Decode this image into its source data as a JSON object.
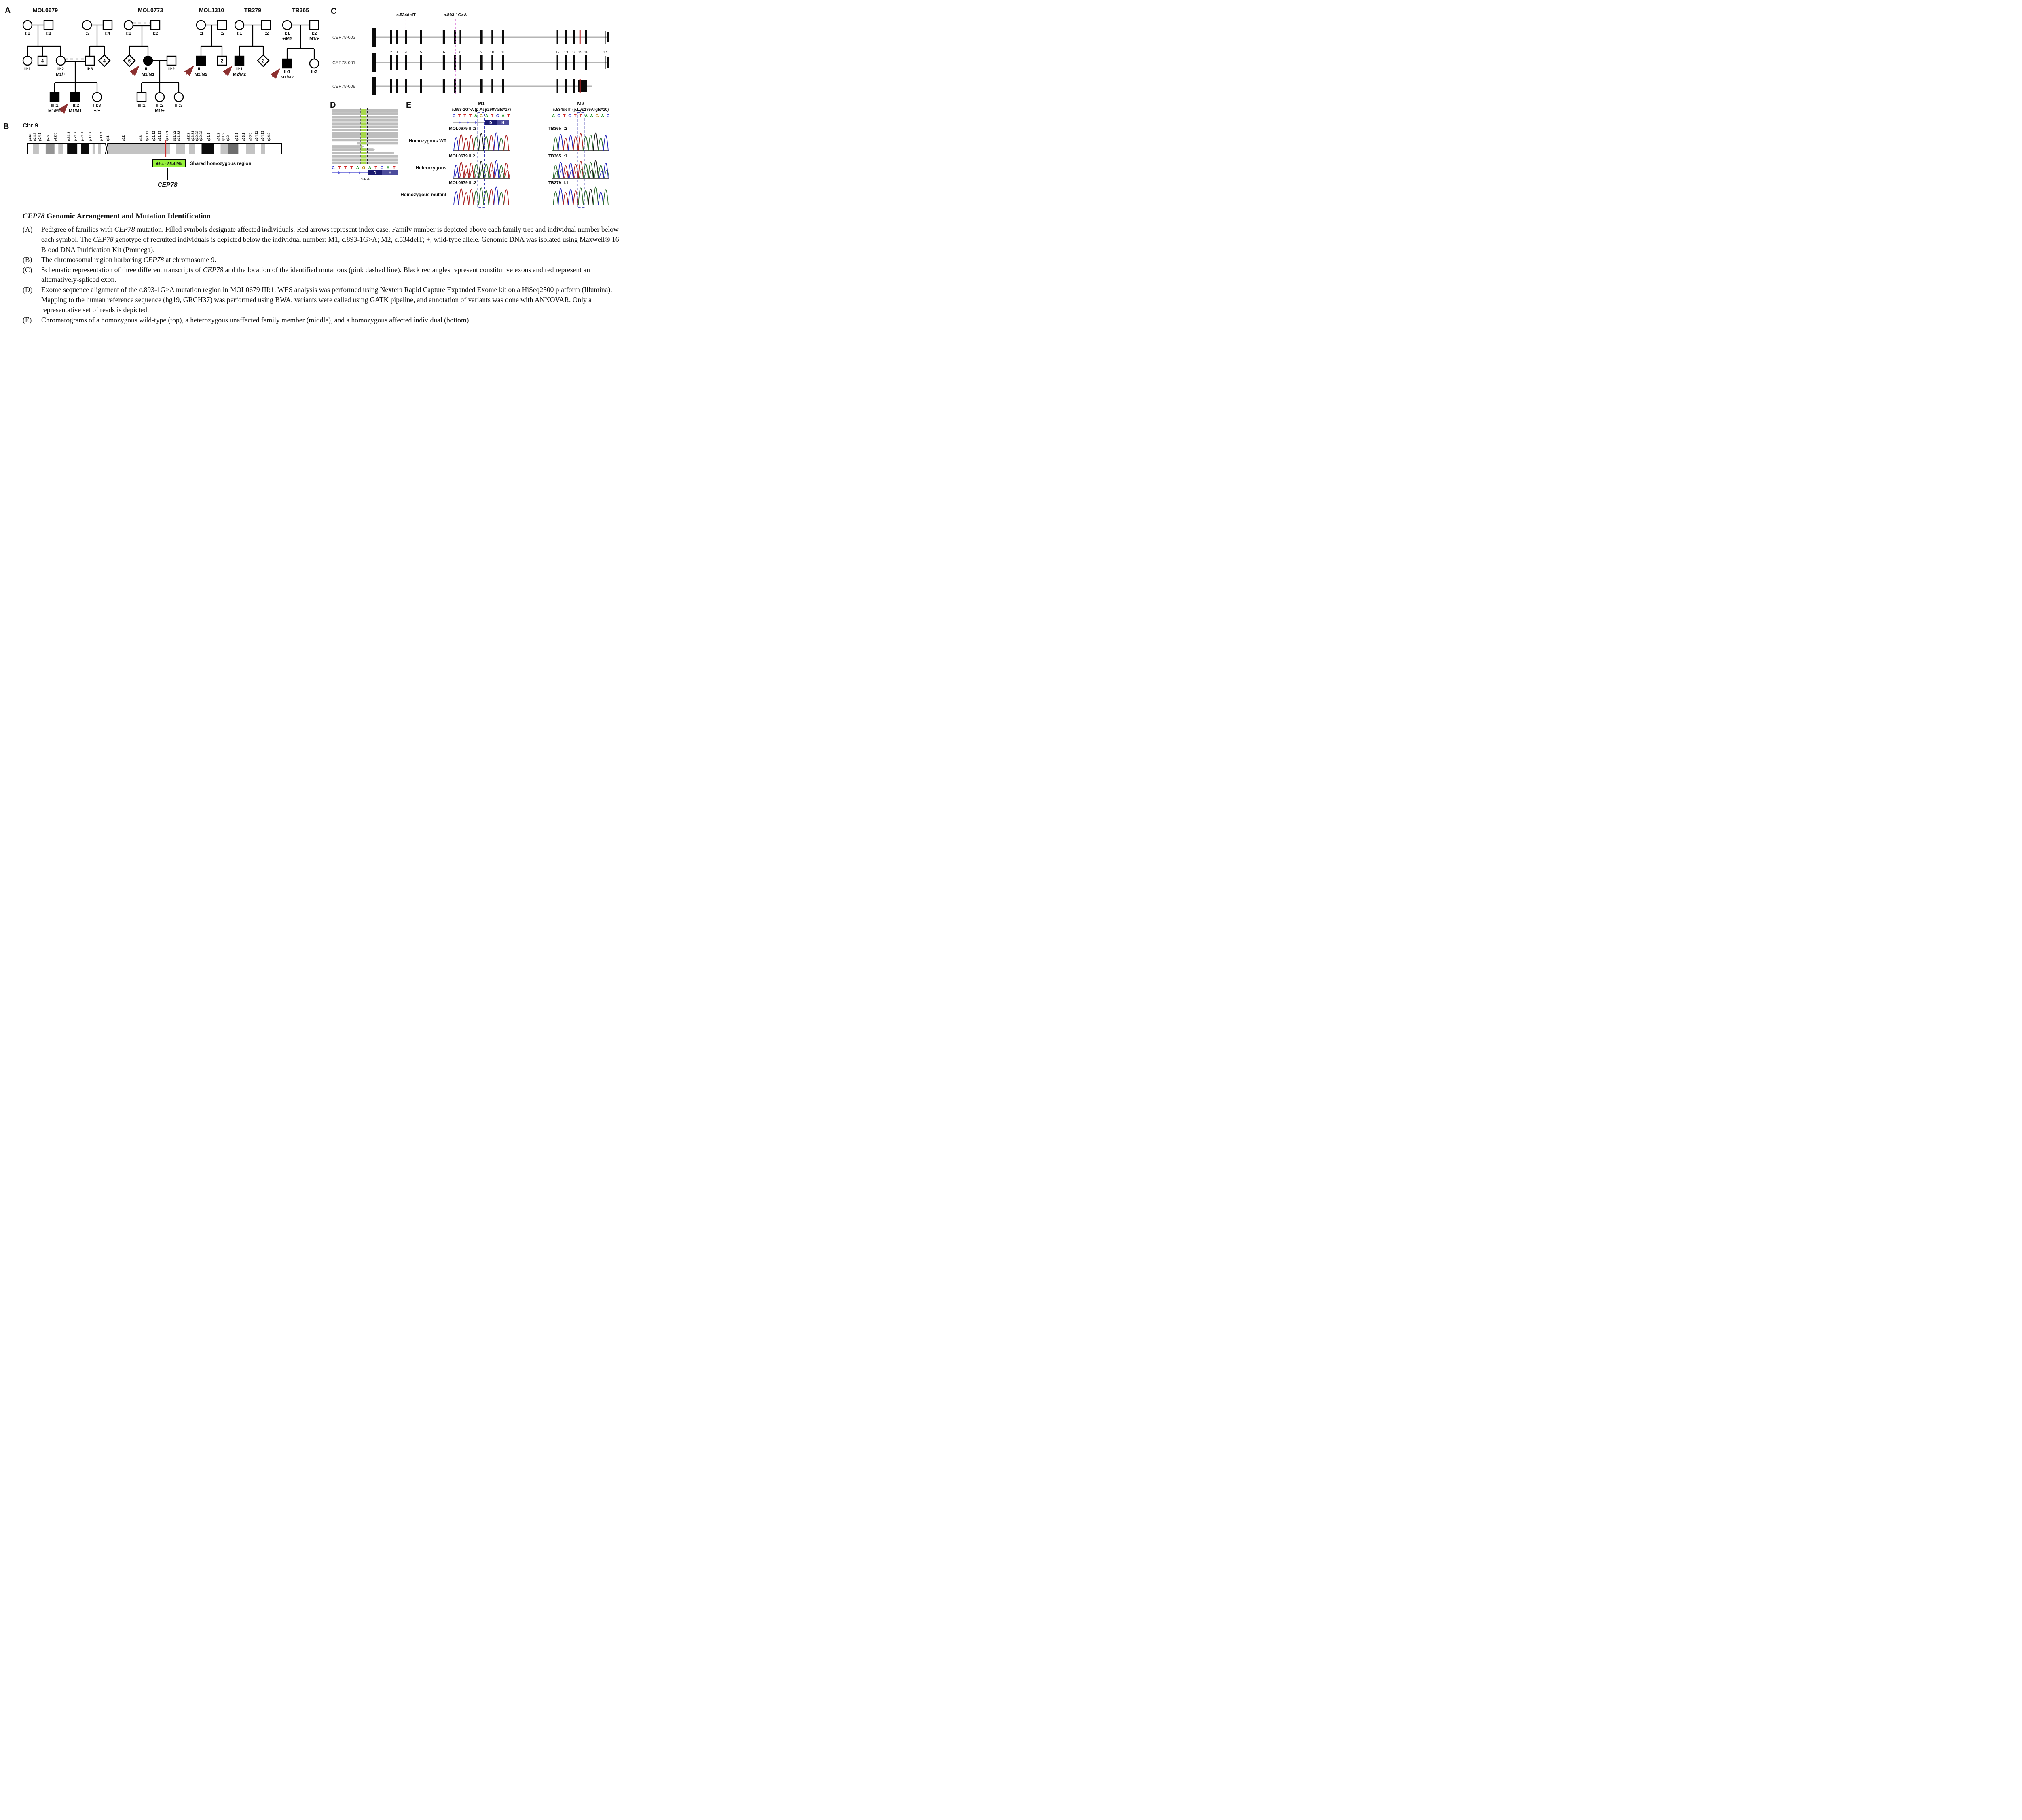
{
  "colors": {
    "arrow": "#8c3030",
    "pink": "#cc4fcc",
    "red_exon": "#bb2222",
    "green_box": "#97f23c",
    "igv_read": "#bdbdbd",
    "igv_green": "#a6d84a",
    "navy_d": "#1b1b70",
    "navy_h": "#4c4c9c",
    "track_blue": "#5b5bd6",
    "red_line": "#cc2222",
    "base": {
      "A": "#0f8a0f",
      "C": "#2424cc",
      "G": "#b8860b",
      "T": "#cc2222"
    },
    "trace": {
      "A": "#2e6b2e",
      "C": "#2323b8",
      "G": "#151515",
      "T": "#a82222"
    }
  },
  "panel_a": {
    "label": "A",
    "families": {
      "mol0679": {
        "title": "MOL0679",
        "members": {
          "i1": {
            "label": "I:1"
          },
          "i2": {
            "label": "I:2"
          },
          "i3": {
            "label": "I:3"
          },
          "i4": {
            "label": "I:4"
          },
          "ii1": {
            "label": "II:1"
          },
          "ii1b": {
            "count": "4"
          },
          "ii2": {
            "label": "II:2",
            "genotype": "M1/+"
          },
          "ii3": {
            "label": "II:3"
          },
          "ii3b": {
            "count": "4"
          },
          "iii1": {
            "label": "III:1",
            "genotype": "M1/M1"
          },
          "iii2": {
            "label": "III:2",
            "genotype": "M1/M1"
          },
          "iii3": {
            "label": "III:3",
            "genotype": "+/+"
          }
        }
      },
      "mol0773": {
        "title": "MOL0773",
        "members": {
          "i1": {
            "label": "I:1"
          },
          "i2": {
            "label": "I:2"
          },
          "d6": {
            "count": "6"
          },
          "ii1": {
            "label": "II:1",
            "genotype": "M1/M1"
          },
          "ii2": {
            "label": "II:2"
          },
          "iii1": {
            "label": "III:1"
          },
          "iii2": {
            "label": "III:2",
            "genotype": "M1/+"
          },
          "iii3": {
            "label": "III:3"
          }
        }
      },
      "mol1310": {
        "title": "MOL1310",
        "members": {
          "i1": {
            "label": "I:1"
          },
          "i2": {
            "label": "I:2"
          },
          "ii1": {
            "label": "II:1",
            "genotype": "M2/M2"
          },
          "ii1b": {
            "count": "2"
          }
        }
      },
      "tb279": {
        "title": "TB279",
        "members": {
          "i1": {
            "label": "I:1"
          },
          "i2": {
            "label": "I:2"
          },
          "ii1": {
            "label": "II:1",
            "genotype": "M2/M2"
          },
          "d2": {
            "count": "2"
          }
        }
      },
      "tb365": {
        "title": "TB365",
        "members": {
          "i1": {
            "label": "I:1",
            "genotype": "+/M2"
          },
          "i2": {
            "label": "I:2",
            "genotype": "M1/+"
          },
          "ii1": {
            "label": "II:1",
            "genotype": "M1/M2"
          },
          "ii2": {
            "label": "II:2"
          }
        }
      }
    }
  },
  "panel_b": {
    "label": "B",
    "chr_label": "Chr 9",
    "bands": [
      {
        "n": "p24.3",
        "p": 0.8
      },
      {
        "n": "p24.2",
        "p": 2.6
      },
      {
        "n": "p24.1",
        "p": 4.6
      },
      {
        "n": "p23",
        "p": 7.8
      },
      {
        "n": "p22.3",
        "p": 10.8
      },
      {
        "n": "p.21.3",
        "p": 16.0
      },
      {
        "n": "p.21.2",
        "p": 18.7
      },
      {
        "n": "p.21.1",
        "p": 21.4
      },
      {
        "n": "p.13.3",
        "p": 24.6
      },
      {
        "n": "p.11.2",
        "p": 28.9
      },
      {
        "n": "q11",
        "p": 31.5
      },
      {
        "n": "q12",
        "p": 37.6
      },
      {
        "n": "q13",
        "p": 44.4
      },
      {
        "n": "q21.11",
        "p": 47.0
      },
      {
        "n": "q21.12",
        "p": 49.6
      },
      {
        "n": "q21.13",
        "p": 51.8
      },
      {
        "n": "q21.31",
        "p": 54.9
      },
      {
        "n": "q21.32",
        "p": 57.7
      },
      {
        "n": "q21.33",
        "p": 59.4
      },
      {
        "n": "q22.2",
        "p": 63.2
      },
      {
        "n": "q22.31",
        "p": 65.0
      },
      {
        "n": "q22.32",
        "p": 66.6
      },
      {
        "n": "q22.33",
        "p": 68.2
      },
      {
        "n": "q31.1",
        "p": 71.3
      },
      {
        "n": "q31.2",
        "p": 75.0
      },
      {
        "n": "q31.3",
        "p": 77.0
      },
      {
        "n": "q32",
        "p": 78.9
      },
      {
        "n": "q33.1",
        "p": 82.3
      },
      {
        "n": "q33.2",
        "p": 85.0
      },
      {
        "n": "q33.3",
        "p": 87.6
      },
      {
        "n": "q34.11",
        "p": 90.1
      },
      {
        "n": "q34.13",
        "p": 92.5
      },
      {
        "n": "q34.3",
        "p": 95.0
      }
    ],
    "segments": [
      [
        0,
        2,
        "w"
      ],
      [
        2,
        4.3,
        "lg"
      ],
      [
        4.3,
        7,
        "w"
      ],
      [
        7,
        10.5,
        "mg"
      ],
      [
        10.5,
        12,
        "w"
      ],
      [
        12,
        14,
        "lg"
      ],
      [
        14,
        15.5,
        "w"
      ],
      [
        15.5,
        19.5,
        "b"
      ],
      [
        19.5,
        21,
        "w"
      ],
      [
        21,
        24,
        "b"
      ],
      [
        24,
        25.5,
        "w"
      ],
      [
        25.5,
        26.6,
        "lg"
      ],
      [
        26.6,
        27.6,
        "w"
      ],
      [
        27.6,
        28.7,
        "lg"
      ],
      [
        28.7,
        31,
        "w"
      ],
      [
        31,
        56,
        "lg"
      ],
      [
        56,
        58.5,
        "w"
      ],
      [
        58.5,
        62,
        "lg"
      ],
      [
        62,
        63.5,
        "w"
      ],
      [
        63.5,
        66,
        "lg"
      ],
      [
        66,
        68.5,
        "w"
      ],
      [
        68.5,
        73.5,
        "b"
      ],
      [
        73.5,
        76,
        "w"
      ],
      [
        76,
        79,
        "lg"
      ],
      [
        79,
        83,
        "dg"
      ],
      [
        83,
        86,
        "w"
      ],
      [
        86,
        89.5,
        "lg"
      ],
      [
        89.5,
        92,
        "w"
      ],
      [
        92,
        93.5,
        "lg"
      ],
      [
        93.5,
        100,
        "w"
      ]
    ],
    "centromere_p": 31,
    "red_line_p": 54.4,
    "region_box": {
      "label": "69.4 - 85.4 Mb",
      "from_p": 49.2,
      "to_p": 62.2
    },
    "shared_label": "Shared homozygous region",
    "gene_label": "CEP78"
  },
  "panel_c": {
    "label": "C",
    "mutations": [
      {
        "name": "c.534delT",
        "f": 0.136
      },
      {
        "name": "c.893-1G>A",
        "f": 0.346
      }
    ],
    "exon_numbers": [
      [
        "1",
        0.004
      ],
      [
        "2",
        0.072
      ],
      [
        "3",
        0.097
      ],
      [
        "4",
        0.136
      ],
      [
        "5",
        0.2
      ],
      [
        "6",
        0.298
      ],
      [
        "7",
        0.344
      ],
      [
        "8",
        0.368
      ],
      [
        "9",
        0.458
      ],
      [
        "10",
        0.503
      ],
      [
        "11",
        0.55
      ],
      [
        "12",
        0.782
      ],
      [
        "13",
        0.818
      ],
      [
        "14",
        0.852
      ],
      [
        "15",
        0.878
      ],
      [
        "16",
        0.904
      ],
      [
        "17",
        0.985
      ]
    ],
    "transcripts": [
      {
        "name": "CEP78-003",
        "end": 1.0,
        "exons": [
          [
            0,
            9,
            46,
            "b"
          ],
          [
            0.072,
            5,
            36,
            "b"
          ],
          [
            0.097,
            4,
            36,
            "b"
          ],
          [
            0.136,
            5,
            36,
            "b"
          ],
          [
            0.2,
            5,
            36,
            "b"
          ],
          [
            0.298,
            6,
            36,
            "b"
          ],
          [
            0.344,
            5,
            36,
            "b"
          ],
          [
            0.368,
            4,
            36,
            "b"
          ],
          [
            0.458,
            6,
            36,
            "b"
          ],
          [
            0.503,
            3,
            36,
            "b"
          ],
          [
            0.55,
            4,
            36,
            "b"
          ],
          [
            0.782,
            4,
            36,
            "b"
          ],
          [
            0.818,
            4,
            36,
            "b"
          ],
          [
            0.852,
            5,
            36,
            "b"
          ],
          [
            0.878,
            3,
            36,
            "r"
          ],
          [
            0.904,
            5,
            36,
            "b"
          ],
          [
            0.985,
            2.5,
            32,
            "b"
          ],
          [
            0.998,
            6,
            26,
            "b"
          ]
        ]
      },
      {
        "name": "CEP78-001",
        "end": 1.0,
        "exons": [
          [
            0,
            9,
            46,
            "b"
          ],
          [
            0.072,
            5,
            36,
            "b"
          ],
          [
            0.097,
            4,
            36,
            "b"
          ],
          [
            0.136,
            5,
            36,
            "b"
          ],
          [
            0.2,
            5,
            36,
            "b"
          ],
          [
            0.298,
            6,
            36,
            "b"
          ],
          [
            0.344,
            5,
            36,
            "b"
          ],
          [
            0.368,
            4,
            36,
            "b"
          ],
          [
            0.458,
            6,
            36,
            "b"
          ],
          [
            0.503,
            3,
            36,
            "b"
          ],
          [
            0.55,
            4,
            36,
            "b"
          ],
          [
            0.782,
            4,
            36,
            "b"
          ],
          [
            0.818,
            4,
            36,
            "b"
          ],
          [
            0.852,
            5,
            36,
            "b"
          ],
          [
            0.904,
            5,
            36,
            "b"
          ],
          [
            0.985,
            2.5,
            32,
            "b"
          ],
          [
            0.998,
            6,
            26,
            "b"
          ]
        ]
      },
      {
        "name": "CEP78-008",
        "end": 0.928,
        "exons": [
          [
            0,
            9,
            46,
            "b"
          ],
          [
            0.072,
            5,
            36,
            "b"
          ],
          [
            0.097,
            4,
            36,
            "b"
          ],
          [
            0.136,
            5,
            36,
            "b"
          ],
          [
            0.2,
            5,
            36,
            "b"
          ],
          [
            0.298,
            6,
            36,
            "b"
          ],
          [
            0.344,
            5,
            36,
            "b"
          ],
          [
            0.368,
            4,
            36,
            "b"
          ],
          [
            0.458,
            6,
            36,
            "b"
          ],
          [
            0.503,
            3,
            36,
            "b"
          ],
          [
            0.55,
            4,
            36,
            "b"
          ],
          [
            0.782,
            4,
            36,
            "b"
          ],
          [
            0.818,
            4,
            36,
            "b"
          ],
          [
            0.852,
            5,
            36,
            "b"
          ],
          [
            0.888,
            22,
            30,
            "b"
          ],
          [
            0.878,
            3,
            36,
            "r"
          ]
        ]
      }
    ]
  },
  "panel_d": {
    "label": "D",
    "reads": [
      [
        0,
        1,
        0
      ],
      [
        0,
        1,
        0
      ],
      [
        0,
        1,
        0
      ],
      [
        0,
        1,
        0
      ],
      [
        0,
        1,
        0
      ],
      [
        0,
        1,
        0
      ],
      [
        0,
        1,
        0
      ],
      [
        0,
        1,
        0
      ],
      [
        0,
        1,
        0
      ],
      [
        0,
        1,
        0
      ],
      [
        0.38,
        1,
        0
      ],
      [
        0,
        0.485,
        1
      ],
      [
        0,
        0.655,
        1
      ],
      [
        0,
        0.945,
        1
      ],
      [
        0,
        1,
        0
      ],
      [
        0,
        1,
        0
      ],
      [
        0,
        1,
        0
      ]
    ],
    "green_col": [
      0.437,
      0.522
    ],
    "dashed": [
      0.43,
      0.537
    ],
    "ref_seq": "CTTTAGATCAT",
    "domains": [
      "D",
      "H"
    ],
    "gene_label": "CEP78"
  },
  "panel_e": {
    "label": "E",
    "row_labels": [
      "Homozygous WT",
      "Heterozygous",
      "Homozygous mutant"
    ],
    "columns": [
      {
        "title": "M1",
        "mutation": "c.893-1G>A (p.Asp298Valfs*17)",
        "ref_seq": "CTTTAGATCAT",
        "hl_index": 5,
        "has_gene_track": true,
        "domains": [
          "D",
          "H"
        ],
        "samples": [
          {
            "name": "MOL0679 III:3",
            "seq": "CTTTAGATCAT"
          },
          {
            "name": "MOL0679 II:2",
            "seq": "CTTTAGATCAT",
            "mix": "CTTTAAATCAT"
          },
          {
            "name": "MOL0679 III:2",
            "seq": "CTTTAAATCAT"
          }
        ]
      },
      {
        "title": "M2",
        "mutation": "c.534delT (p.Lys179Argfs*10)",
        "ref_seq": "ACTCTTAAGAC",
        "hl_index": 5,
        "has_gene_track": false,
        "samples": [
          {
            "name": "TB365 I:2",
            "seq": "ACTCTTAAGAC"
          },
          {
            "name": "TB365 I:1",
            "seq": "ACTCTTAAGAC",
            "mix": "ACTCTAAGACA"
          },
          {
            "name": "TB279 II:1",
            "seq": "ACTCTAAGACA"
          }
        ]
      }
    ]
  },
  "caption": {
    "title": [
      {
        "t": "CEP78",
        "i": 1
      },
      {
        "t": " Genomic Arrangement and Mutation Identification"
      }
    ],
    "items": [
      {
        "label": "(A)",
        "parts": [
          {
            "t": "Pedigree of families with "
          },
          {
            "t": "CEP78",
            "i": 1
          },
          {
            "t": " mutation. Filled symbols designate affected individuals. Red arrows represent index case. Family number is depicted above each family tree and individual number below each symbol. The "
          },
          {
            "t": "CEP78",
            "i": 1
          },
          {
            "t": " genotype of recruited individuals is depicted below the individual number: M1, c.893-1G>A; M2, c.534delT; +, wild-type allele. Genomic DNA was isolated using Maxwell® 16 Blood DNA Purification Kit (Promega)."
          }
        ]
      },
      {
        "label": "(B)",
        "parts": [
          {
            "t": "The chromosomal region harboring "
          },
          {
            "t": "CEP78",
            "i": 1
          },
          {
            "t": " at chromosome 9."
          }
        ]
      },
      {
        "label": "(C)",
        "parts": [
          {
            "t": "Schematic representation of three different transcripts of "
          },
          {
            "t": "CEP78",
            "i": 1
          },
          {
            "t": " and the location of the identified mutations (pink dashed line). Black rectangles represent constitutive exons and red represent an alternatively-spliced exon."
          }
        ]
      },
      {
        "label": "(D)",
        "parts": [
          {
            "t": "Exome sequence alignment of the c.893-1G>A mutation region in MOL0679 III:1. WES analysis was performed using Nextera Rapid Capture Expanded Exome kit on a HiSeq2500 platform (Illumina). Mapping to the human reference sequence (hg19, GRCH37) was performed using BWA, variants were called using GATK pipeline, and annotation of variants was done with ANNOVAR. Only a representative set of reads is depicted."
          }
        ]
      },
      {
        "label": "(E)",
        "parts": [
          {
            "t": "Chromatograms of a homozygous wild-type (top), a heterozygous unaffected family member (middle), and a homozygous affected individual (bottom)."
          }
        ]
      }
    ]
  }
}
